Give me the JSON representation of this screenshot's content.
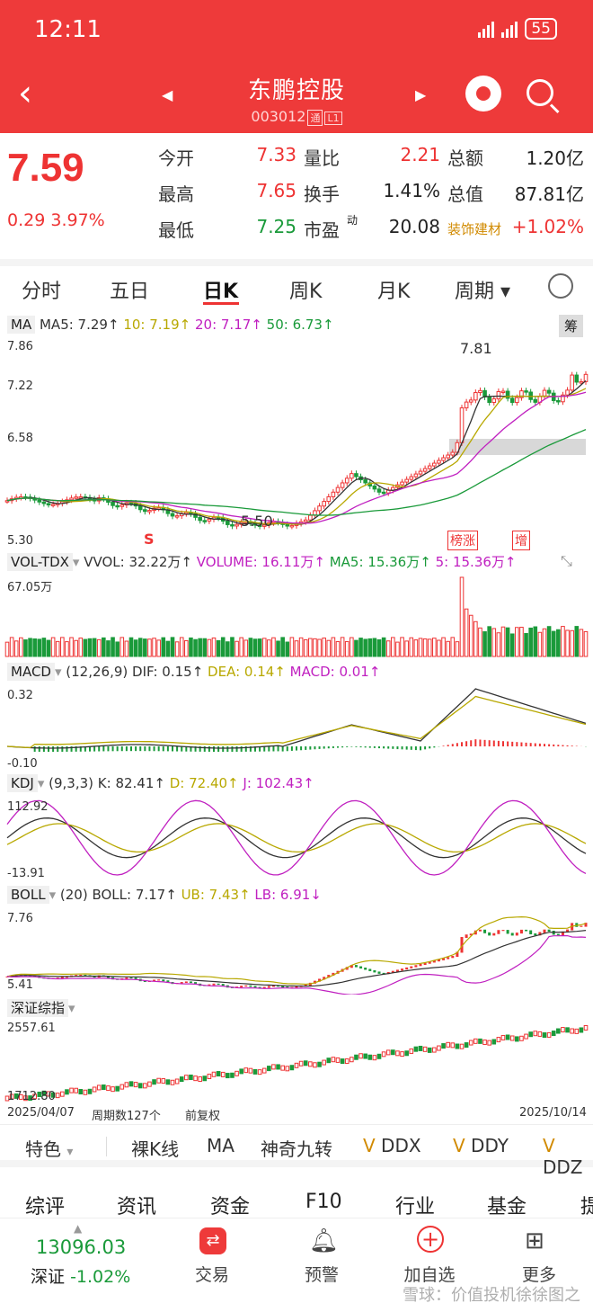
{
  "status": {
    "time": "12:11",
    "battery": "55"
  },
  "header": {
    "stock_name": "东鹏控股",
    "stock_code": "003012",
    "level_tag": "通",
    "level": "L1"
  },
  "quote": {
    "price": "7.59",
    "change": "0.29",
    "change_pct": "3.97%",
    "rows": [
      [
        {
          "l": "今开",
          "v": "7.33",
          "c": "red"
        },
        {
          "l": "量比",
          "v": "2.21",
          "c": "red"
        },
        {
          "l": "总额",
          "v": "1.20亿",
          "c": "black"
        }
      ],
      [
        {
          "l": "最高",
          "v": "7.65",
          "c": "red"
        },
        {
          "l": "换手",
          "v": "1.41%",
          "c": "black"
        },
        {
          "l": "总值",
          "v": "87.81亿",
          "c": "black"
        }
      ],
      [
        {
          "l": "最低",
          "v": "7.25",
          "c": "green"
        },
        {
          "l": "市盈",
          "sup": "动",
          "v": "20.08",
          "c": "black"
        },
        {
          "l": "装饰建材",
          "v": "+1.02%",
          "c": "red",
          "small": true
        }
      ]
    ]
  },
  "tabs": [
    "分时",
    "五日",
    "日K",
    "周K",
    "月K",
    "周期"
  ],
  "ma": {
    "tag": "MA",
    "ma5": "MA5: 7.29↑",
    "ma10": "10: 7.19↑",
    "ma20": "20: 7.17↑",
    "ma50": "50: 6.73↑",
    "chip": "筹",
    "y_top": "7.86",
    "y_mid": "7.22",
    "y_low": "6.58",
    "y_bot": "5.30",
    "peak": "7.81",
    "trough": "5.50",
    "s_mark": "S",
    "mark1": "榜涨",
    "mark2": "增"
  },
  "vol": {
    "tag": "VOL-TDX",
    "vvol": "VVOL: 32.22万↑",
    "volume": "VOLUME: 16.11万↑",
    "ma5": "MA5: 15.36万↑",
    "m5": "5: 15.36万↑",
    "y_top": "67.05万"
  },
  "macd": {
    "tag": "MACD",
    "params": "(12,26,9)",
    "dif": "DIF: 0.15↑",
    "dea": "DEA: 0.14↑",
    "macd": "MACD: 0.01↑",
    "y_top": "0.32",
    "y_bot": "-0.10"
  },
  "kdj": {
    "tag": "KDJ",
    "params": "(9,3,3)",
    "k": "K: 82.41↑",
    "d": "D: 72.40↑",
    "j": "J: 102.43↑",
    "y_top": "112.92",
    "y_bot": "-13.91"
  },
  "boll": {
    "tag": "BOLL",
    "params": "(20)",
    "boll": "BOLL: 7.17↑",
    "ub": "UB: 7.43↑",
    "lb": "LB: 6.91↓",
    "y_top": "7.76",
    "y_bot": "5.41"
  },
  "index": {
    "tag": "深证综指",
    "y_top": "2557.61",
    "y_bot": "1712.80",
    "date_start": "2025/04/07",
    "periods": "周期数127个",
    "adj": "前复权",
    "date_end": "2025/10/14"
  },
  "features": [
    "特色",
    "裸K线",
    "MA",
    "神奇九转",
    "DDX",
    "DDY",
    "DDZ"
  ],
  "news_tabs": [
    "综评",
    "资讯",
    "资金",
    "F10",
    "行业",
    "基金",
    "提"
  ],
  "bottom": {
    "index_value": "13096.03",
    "index_name": "深证",
    "index_chg": "-1.02%",
    "items": [
      "交易",
      "预警",
      "加自选",
      "更多"
    ]
  },
  "watermark": "雪球：价值投机徐徐图之"
}
